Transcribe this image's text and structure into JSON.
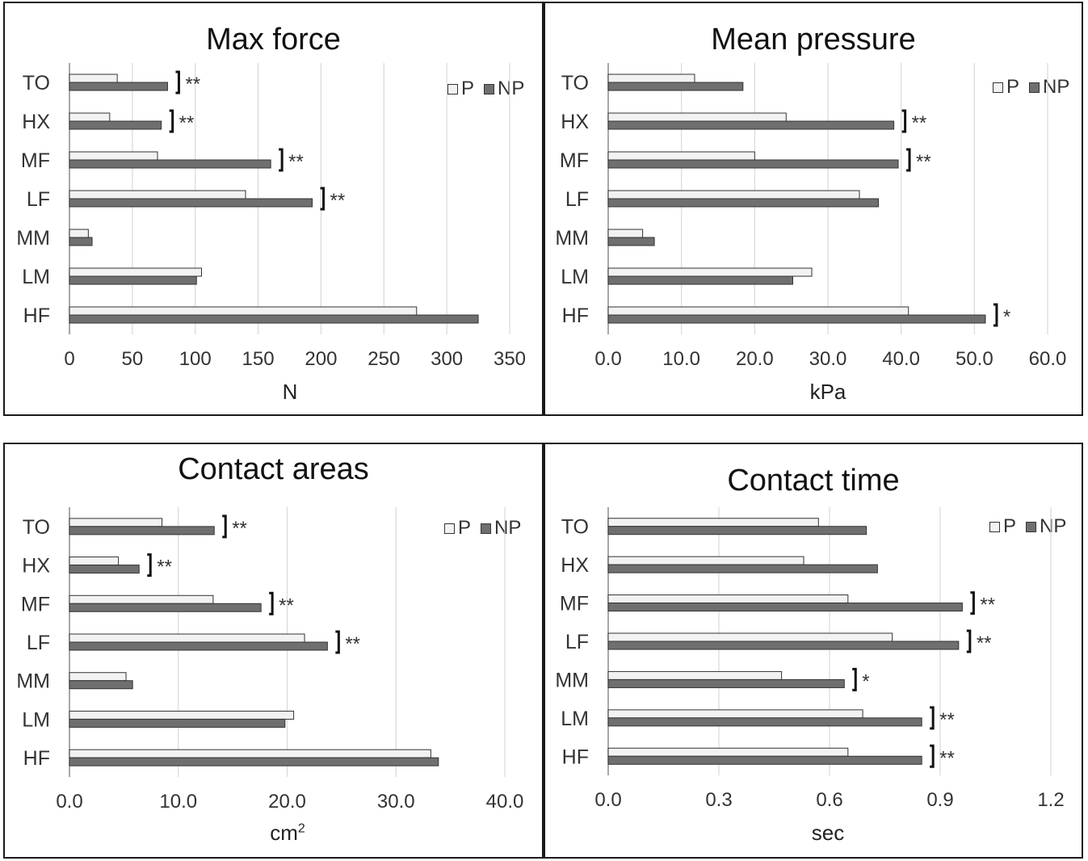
{
  "legend": {
    "p_label": "P",
    "np_label": "NP"
  },
  "colors": {
    "p_fill": "#f2f2f2",
    "np_fill": "#6f6f6f",
    "bar_stroke": "#333333",
    "grid": "#d9d9d9"
  },
  "chart_data": [
    {
      "type": "bar",
      "orientation": "horizontal",
      "title": "Max force",
      "xlabel": "N",
      "xlabel_sup": "",
      "categories": [
        "TO",
        "HX",
        "MF",
        "LF",
        "MM",
        "LM",
        "HF"
      ],
      "series": [
        {
          "name": "P",
          "values": [
            38,
            32,
            70,
            140,
            15,
            105,
            276
          ]
        },
        {
          "name": "NP",
          "values": [
            78,
            73,
            160,
            193,
            18,
            101,
            325
          ]
        }
      ],
      "significance": [
        "**",
        "**",
        "**",
        "**",
        "",
        "",
        ""
      ],
      "xlim": [
        0,
        350
      ],
      "ticks": [
        0,
        50,
        100,
        150,
        200,
        250,
        300,
        350
      ],
      "tick_labels": [
        "0",
        "50",
        "100",
        "150",
        "200",
        "250",
        "300",
        "350"
      ],
      "grid": true,
      "legend_position": "top-right"
    },
    {
      "type": "bar",
      "orientation": "horizontal",
      "title": "Mean pressure",
      "xlabel": "kPa",
      "xlabel_sup": "",
      "categories": [
        "TO",
        "HX",
        "MF",
        "LF",
        "MM",
        "LM",
        "HF"
      ],
      "series": [
        {
          "name": "P",
          "values": [
            11.8,
            24.3,
            20.0,
            34.3,
            4.7,
            27.8,
            41.0
          ]
        },
        {
          "name": "NP",
          "values": [
            18.4,
            39.0,
            39.6,
            36.9,
            6.3,
            25.2,
            51.5
          ]
        }
      ],
      "significance": [
        "",
        "**",
        "**",
        "",
        "",
        "",
        "*"
      ],
      "xlim": [
        0,
        60
      ],
      "ticks": [
        0,
        10,
        20,
        30,
        40,
        50,
        60
      ],
      "tick_labels": [
        "0.0",
        "10.0",
        "20.0",
        "30.0",
        "40.0",
        "50.0",
        "60.0"
      ],
      "grid": true,
      "legend_position": "top-right"
    },
    {
      "type": "bar",
      "orientation": "horizontal",
      "title": "Contact areas",
      "xlabel": "cm",
      "xlabel_sup": "2",
      "categories": [
        "TO",
        "HX",
        "MF",
        "LF",
        "MM",
        "LM",
        "HF"
      ],
      "series": [
        {
          "name": "P",
          "values": [
            8.5,
            4.5,
            13.2,
            21.6,
            5.2,
            20.6,
            33.2
          ]
        },
        {
          "name": "NP",
          "values": [
            13.3,
            6.4,
            17.6,
            23.7,
            5.8,
            19.8,
            33.9
          ]
        }
      ],
      "significance": [
        "**",
        "**",
        "**",
        "**",
        "",
        "",
        ""
      ],
      "xlim": [
        0,
        40
      ],
      "ticks": [
        0,
        10,
        20,
        30,
        40
      ],
      "tick_labels": [
        "0.0",
        "10.0",
        "20.0",
        "30.0",
        "40.0"
      ],
      "grid": true,
      "legend_position": "top-right"
    },
    {
      "type": "bar",
      "orientation": "horizontal",
      "title": "Contact time",
      "xlabel": "sec",
      "xlabel_sup": "",
      "categories": [
        "TO",
        "HX",
        "MF",
        "LF",
        "MM",
        "LM",
        "HF"
      ],
      "series": [
        {
          "name": "P",
          "values": [
            0.57,
            0.53,
            0.65,
            0.77,
            0.47,
            0.69,
            0.65
          ]
        },
        {
          "name": "NP",
          "values": [
            0.7,
            0.73,
            0.96,
            0.95,
            0.64,
            0.85,
            0.85
          ]
        }
      ],
      "significance": [
        "",
        "",
        "**",
        "**",
        "*",
        "**",
        "**"
      ],
      "xlim": [
        0,
        1.2
      ],
      "ticks": [
        0,
        0.3,
        0.6,
        0.9,
        1.2
      ],
      "tick_labels": [
        "0.0",
        "0.3",
        "0.6",
        "0.9",
        "1.2"
      ],
      "grid": true,
      "legend_position": "top-right"
    }
  ]
}
